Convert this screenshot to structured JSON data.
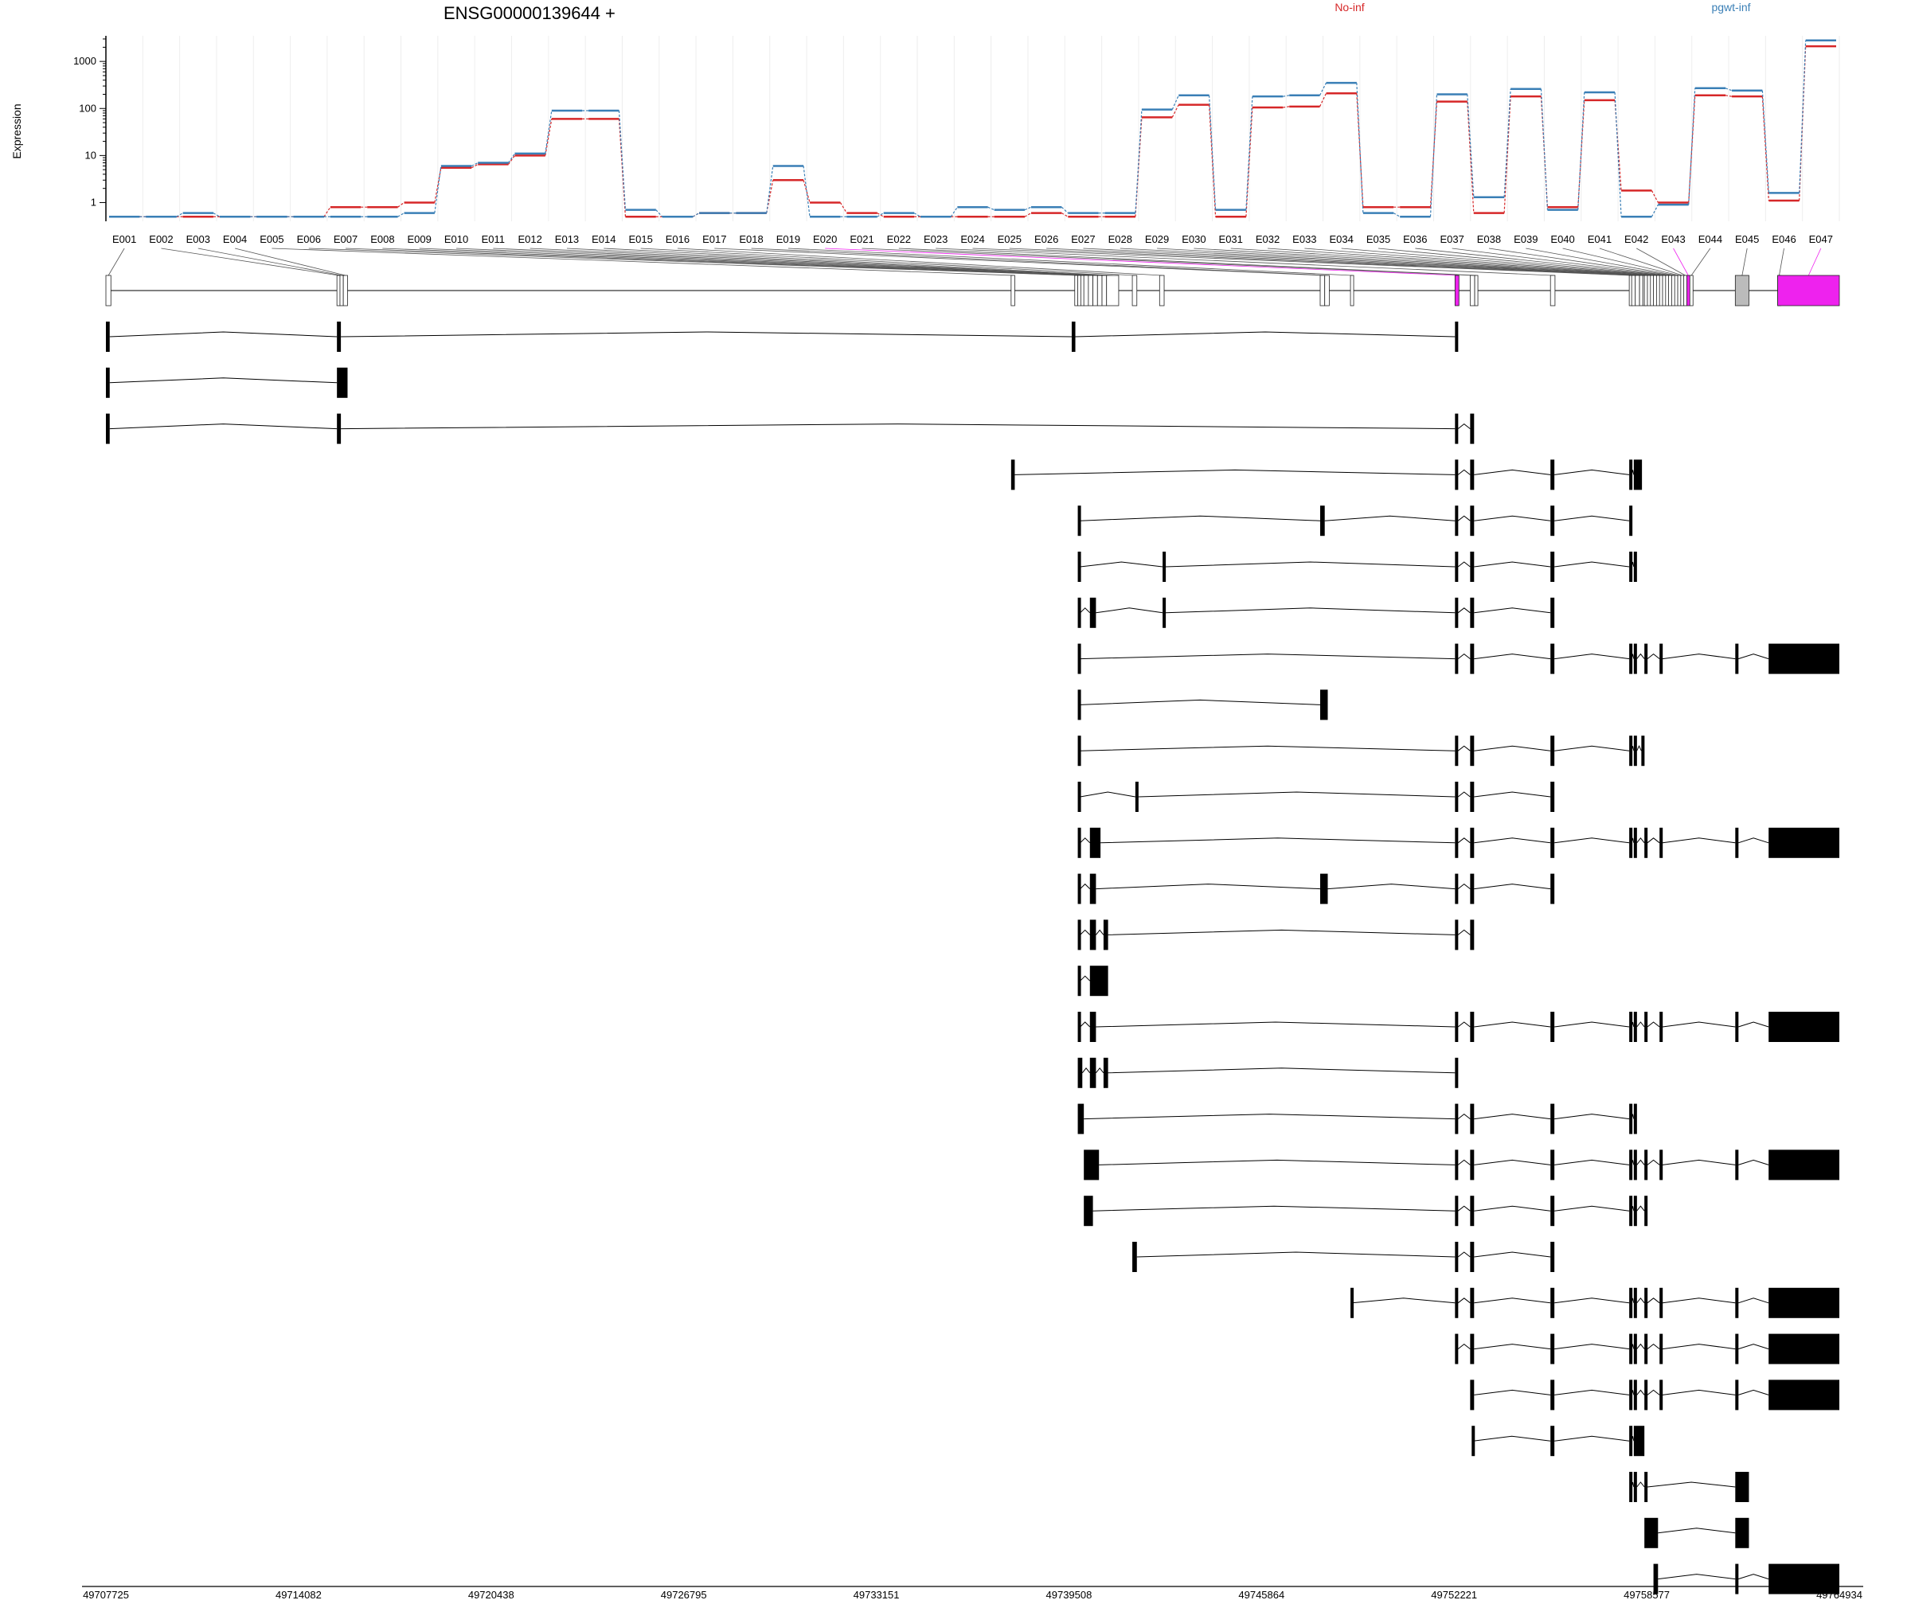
{
  "chart_data": {
    "type": "line",
    "title": "ENSG00000139644 +",
    "ylabel": "Expression",
    "y_scale": "log",
    "y_ticks": [
      "1",
      "10",
      "100",
      "1000"
    ],
    "ylim": [
      0.4,
      3500
    ],
    "grid": true,
    "legend_placement": "top",
    "categories": [
      "E001",
      "E002",
      "E003",
      "E004",
      "E005",
      "E006",
      "E007",
      "E008",
      "E009",
      "E010",
      "E011",
      "E012",
      "E013",
      "E014",
      "E015",
      "E016",
      "E017",
      "E018",
      "E019",
      "E020",
      "E021",
      "E022",
      "E023",
      "E024",
      "E025",
      "E026",
      "E027",
      "E028",
      "E029",
      "E030",
      "E031",
      "E032",
      "E033",
      "E034",
      "E035",
      "E036",
      "E037",
      "E038",
      "E039",
      "E040",
      "E041",
      "E042",
      "E043",
      "E044",
      "E045",
      "E046",
      "E047"
    ],
    "series": [
      {
        "name": "No-inf",
        "color": "#d62728",
        "values": [
          0.5,
          0.5,
          0.5,
          0.5,
          0.5,
          0.5,
          0.8,
          0.8,
          1.0,
          5.5,
          6.5,
          10,
          60,
          60,
          0.5,
          0.5,
          0.6,
          0.6,
          3,
          1,
          0.6,
          0.5,
          0.5,
          0.5,
          0.5,
          0.6,
          0.5,
          0.5,
          65,
          120,
          0.5,
          105,
          110,
          210,
          0.8,
          0.8,
          140,
          0.6,
          180,
          0.8,
          150,
          1.8,
          1,
          190,
          180,
          1.1,
          2100
        ]
      },
      {
        "name": "pgwt-inf",
        "color": "#3a7fb6",
        "values": [
          0.5,
          0.5,
          0.6,
          0.5,
          0.5,
          0.5,
          0.5,
          0.5,
          0.6,
          6,
          7,
          11,
          90,
          90,
          0.7,
          0.5,
          0.6,
          0.6,
          6,
          0.5,
          0.5,
          0.6,
          0.5,
          0.8,
          0.7,
          0.8,
          0.6,
          0.6,
          95,
          190,
          0.7,
          180,
          190,
          350,
          0.6,
          0.5,
          200,
          1.3,
          260,
          0.7,
          220,
          0.5,
          0.9,
          270,
          240,
          1.6,
          2800
        ]
      }
    ]
  },
  "highlight_color": "#ee22ee",
  "genomic_axis": {
    "ticks": [
      "49707725",
      "49714082",
      "49720438",
      "49726795",
      "49733151",
      "49739508",
      "49745864",
      "49752221",
      "49758577",
      "49764934"
    ],
    "range": [
      49707725,
      49764934
    ]
  },
  "exon_bins": [
    [
      49707725,
      49707890
    ],
    [
      49715350,
      49715450
    ],
    [
      49715450,
      49715560
    ],
    [
      49715560,
      49715700
    ],
    [
      49737600,
      49737720
    ],
    [
      49739700,
      49739800
    ],
    [
      49739800,
      49739900
    ],
    [
      49739900,
      49740000
    ],
    [
      49740000,
      49740150
    ],
    [
      49740150,
      49740300
    ],
    [
      49740300,
      49740450
    ],
    [
      49740450,
      49740600
    ],
    [
      49740600,
      49740750
    ],
    [
      49740750,
      49741150
    ],
    [
      49741600,
      49741750
    ],
    [
      49742500,
      49742650
    ],
    [
      49747800,
      49747950
    ],
    [
      49747950,
      49748100
    ],
    [
      49748800,
      49748900
    ],
    [
      49752250,
      49752380
    ],
    [
      49752750,
      49752900
    ],
    [
      49752900,
      49753000
    ],
    [
      49755400,
      49755550
    ],
    [
      49758000,
      49758080
    ],
    [
      49758080,
      49758200
    ],
    [
      49758200,
      49758340
    ],
    [
      49758340,
      49758450
    ],
    [
      49758450,
      49758500
    ],
    [
      49758500,
      49758600
    ],
    [
      49758600,
      49758700
    ],
    [
      49758700,
      49758800
    ],
    [
      49758800,
      49758900
    ],
    [
      49758900,
      49759000
    ],
    [
      49759000,
      49759100
    ],
    [
      49759100,
      49759200
    ],
    [
      49759200,
      49759300
    ],
    [
      49759300,
      49759400
    ],
    [
      49759400,
      49759500
    ],
    [
      49759500,
      49759600
    ],
    [
      49759600,
      49759700
    ],
    [
      49759700,
      49759800
    ],
    [
      49759800,
      49759900
    ],
    [
      49759900,
      49760000
    ],
    [
      49760000,
      49760100
    ],
    [
      49761500,
      49761950
    ],
    [
      49762900,
      49763000
    ],
    [
      49762900,
      49764934
    ]
  ],
  "highlighted_bins": [
    20,
    43,
    47
  ],
  "transcripts": [
    [
      [
        49707725,
        49707850
      ],
      [
        49715350,
        49715480
      ],
      [
        49739600,
        49739720
      ],
      [
        49752250,
        49752350
      ]
    ],
    [
      [
        49707725,
        49707850
      ],
      [
        49715350,
        49715700
      ]
    ],
    [
      [
        49707725,
        49707850
      ],
      [
        49715350,
        49715480
      ],
      [
        49752250,
        49752350
      ],
      [
        49752750,
        49752880
      ]
    ],
    [
      [
        49737600,
        49737720
      ],
      [
        49752250,
        49752350
      ],
      [
        49752750,
        49752880
      ],
      [
        49755400,
        49755530
      ],
      [
        49758000,
        49758080
      ],
      [
        49758150,
        49758420
      ]
    ],
    [
      [
        49739800,
        49739880
      ],
      [
        49747800,
        49747950
      ],
      [
        49752250,
        49752350
      ],
      [
        49752750,
        49752880
      ],
      [
        49755400,
        49755530
      ],
      [
        49758000,
        49758080
      ]
    ],
    [
      [
        49739800,
        49739880
      ],
      [
        49742600,
        49742700
      ],
      [
        49752250,
        49752350
      ],
      [
        49752750,
        49752880
      ],
      [
        49755400,
        49755530
      ],
      [
        49758000,
        49758080
      ],
      [
        49758150,
        49758250
      ]
    ],
    [
      [
        49739800,
        49739880
      ],
      [
        49740200,
        49740400
      ],
      [
        49742600,
        49742700
      ],
      [
        49752250,
        49752350
      ],
      [
        49752750,
        49752880
      ],
      [
        49755400,
        49755530
      ]
    ],
    [
      [
        49739800,
        49739880
      ],
      [
        49752250,
        49752350
      ],
      [
        49752750,
        49752880
      ],
      [
        49755400,
        49755530
      ],
      [
        49758000,
        49758080
      ],
      [
        49758150,
        49758250
      ],
      [
        49758500,
        49758600
      ],
      [
        49759000,
        49759100
      ],
      [
        49761500,
        49761600
      ],
      [
        49762600,
        49764934
      ]
    ],
    [
      [
        49739800,
        49739880
      ],
      [
        49747800,
        49748050
      ]
    ],
    [
      [
        49739800,
        49739880
      ],
      [
        49752250,
        49752350
      ],
      [
        49752750,
        49752880
      ],
      [
        49755400,
        49755530
      ],
      [
        49758000,
        49758080
      ],
      [
        49758150,
        49758250
      ],
      [
        49758400,
        49758500
      ]
    ],
    [
      [
        49739800,
        49739880
      ],
      [
        49741700,
        49741800
      ],
      [
        49752250,
        49752350
      ],
      [
        49752750,
        49752880
      ],
      [
        49755400,
        49755530
      ]
    ],
    [
      [
        49739800,
        49739880
      ],
      [
        49740200,
        49740550
      ],
      [
        49752250,
        49752350
      ],
      [
        49752750,
        49752880
      ],
      [
        49755400,
        49755530
      ],
      [
        49758000,
        49758080
      ],
      [
        49758150,
        49758250
      ],
      [
        49758500,
        49758600
      ],
      [
        49759000,
        49759100
      ],
      [
        49761500,
        49761600
      ],
      [
        49762600,
        49764934
      ]
    ],
    [
      [
        49739800,
        49739880
      ],
      [
        49740200,
        49740400
      ],
      [
        49747800,
        49748050
      ],
      [
        49752250,
        49752350
      ],
      [
        49752750,
        49752880
      ],
      [
        49755400,
        49755530
      ]
    ],
    [
      [
        49739800,
        49739880
      ],
      [
        49740200,
        49740400
      ],
      [
        49740650,
        49740800
      ],
      [
        49752250,
        49752350
      ],
      [
        49752750,
        49752880
      ]
    ],
    [
      [
        49739800,
        49739880
      ],
      [
        49740200,
        49740800
      ]
    ],
    [
      [
        49739800,
        49739880
      ],
      [
        49740200,
        49740400
      ],
      [
        49752250,
        49752350
      ],
      [
        49752750,
        49752880
      ],
      [
        49755400,
        49755530
      ],
      [
        49758000,
        49758080
      ],
      [
        49758150,
        49758250
      ],
      [
        49758500,
        49758600
      ],
      [
        49759000,
        49759100
      ],
      [
        49761500,
        49761600
      ],
      [
        49762600,
        49764934
      ]
    ],
    [
      [
        49739800,
        49739950
      ],
      [
        49740200,
        49740400
      ],
      [
        49740650,
        49740800
      ],
      [
        49752250,
        49752350
      ]
    ],
    [
      [
        49739800,
        49740000
      ],
      [
        49752250,
        49752350
      ],
      [
        49752750,
        49752880
      ],
      [
        49755400,
        49755530
      ],
      [
        49758000,
        49758080
      ],
      [
        49758150,
        49758250
      ]
    ],
    [
      [
        49740000,
        49740500
      ],
      [
        49752250,
        49752350
      ],
      [
        49752750,
        49752880
      ],
      [
        49755400,
        49755530
      ],
      [
        49758000,
        49758080
      ],
      [
        49758150,
        49758250
      ],
      [
        49758500,
        49758600
      ],
      [
        49759000,
        49759100
      ],
      [
        49761500,
        49761600
      ],
      [
        49762600,
        49764934
      ]
    ],
    [
      [
        49740000,
        49740300
      ],
      [
        49752250,
        49752350
      ],
      [
        49752750,
        49752880
      ],
      [
        49755400,
        49755530
      ],
      [
        49758000,
        49758080
      ],
      [
        49758150,
        49758250
      ],
      [
        49758500,
        49758600
      ]
    ],
    [
      [
        49741600,
        49741750
      ],
      [
        49752250,
        49752350
      ],
      [
        49752750,
        49752880
      ],
      [
        49755400,
        49755530
      ]
    ],
    [
      [
        49748800,
        49748850
      ],
      [
        49752250,
        49752350
      ],
      [
        49752750,
        49752880
      ],
      [
        49755400,
        49755530
      ],
      [
        49758000,
        49758080
      ],
      [
        49758150,
        49758250
      ],
      [
        49758500,
        49758600
      ],
      [
        49759000,
        49759100
      ],
      [
        49761500,
        49761600
      ],
      [
        49762600,
        49764934
      ]
    ],
    [
      [
        49752250,
        49752350
      ],
      [
        49752750,
        49752880
      ],
      [
        49755400,
        49755530
      ],
      [
        49758000,
        49758080
      ],
      [
        49758150,
        49758250
      ],
      [
        49758500,
        49758600
      ],
      [
        49759000,
        49759100
      ],
      [
        49761500,
        49761600
      ],
      [
        49762600,
        49764934
      ]
    ],
    [
      [
        49752750,
        49752880
      ],
      [
        49755400,
        49755530
      ],
      [
        49758000,
        49758080
      ],
      [
        49758150,
        49758250
      ],
      [
        49758500,
        49758600
      ],
      [
        49759000,
        49759100
      ],
      [
        49761500,
        49761600
      ],
      [
        49762600,
        49764934
      ]
    ],
    [
      [
        49752800,
        49752850
      ],
      [
        49755400,
        49755530
      ],
      [
        49758000,
        49758080
      ],
      [
        49758150,
        49758500
      ]
    ],
    [
      [
        49758000,
        49758080
      ],
      [
        49758150,
        49758250
      ],
      [
        49758500,
        49758600
      ],
      [
        49761500,
        49761950
      ]
    ],
    [
      [
        49758500,
        49758950
      ],
      [
        49761500,
        49761950
      ]
    ],
    [
      [
        49758800,
        49758950
      ],
      [
        49761500,
        49761600
      ],
      [
        49762600,
        49764934
      ]
    ]
  ]
}
